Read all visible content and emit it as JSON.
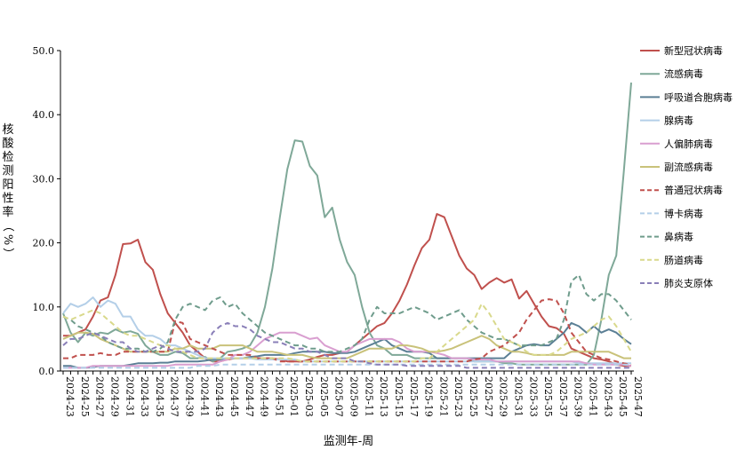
{
  "chart_data": {
    "type": "line",
    "title": "",
    "xlabel": "监测年-周",
    "ylabel": "核酸检测阳性率（%）",
    "ylim": [
      0,
      50
    ],
    "yticks": [
      "0.0",
      "10.0",
      "20.0",
      "30.0",
      "40.0",
      "50.0"
    ],
    "grid": false,
    "legend_position": "right",
    "x": [
      "2024-23",
      "2024-24",
      "2024-25",
      "2024-26",
      "2024-27",
      "2024-28",
      "2024-29",
      "2024-30",
      "2024-31",
      "2024-32",
      "2024-33",
      "2024-34",
      "2024-35",
      "2024-36",
      "2024-37",
      "2024-38",
      "2024-39",
      "2024-40",
      "2024-41",
      "2024-42",
      "2024-43",
      "2024-44",
      "2024-45",
      "2024-46",
      "2024-47",
      "2024-48",
      "2024-49",
      "2024-50",
      "2024-51",
      "2024-52",
      "2025-01",
      "2025-02",
      "2025-03",
      "2025-04",
      "2025-05",
      "2025-06",
      "2025-07",
      "2025-08",
      "2025-09",
      "2025-10",
      "2025-11",
      "2025-12",
      "2025-13",
      "2025-14",
      "2025-15",
      "2025-16",
      "2025-17",
      "2025-18",
      "2025-19",
      "2025-20",
      "2025-21",
      "2025-22",
      "2025-23",
      "2025-24",
      "2025-25",
      "2025-26",
      "2025-27",
      "2025-28",
      "2025-29",
      "2025-30",
      "2025-31",
      "2025-32",
      "2025-33",
      "2025-34",
      "2025-35",
      "2025-36",
      "2025-37",
      "2025-38",
      "2025-39",
      "2025-40",
      "2025-41",
      "2025-42",
      "2025-43",
      "2025-44",
      "2025-45",
      "2025-46",
      "2025-47"
    ],
    "x_tick_labels": [
      "2024-23",
      "2024-25",
      "2024-27",
      "2024-29",
      "2024-31",
      "2024-33",
      "2024-35",
      "2024-37",
      "2024-39",
      "2024-41",
      "2024-43",
      "2024-45",
      "2024-47",
      "2024-49",
      "2024-51",
      "2025-01",
      "2025-03",
      "2025-05",
      "2025-07",
      "2025-09",
      "2025-11",
      "2025-13",
      "2025-15",
      "2025-17",
      "2025-19",
      "2025-21",
      "2025-23",
      "2025-25",
      "2025-27",
      "2025-29",
      "2025-31",
      "2025-33",
      "2025-35",
      "2025-37",
      "2025-39",
      "2025-41",
      "2025-43",
      "2025-45",
      "2025-47"
    ],
    "series": [
      {
        "name": "新型冠状病毒",
        "color": "#c0504d",
        "dash": "solid",
        "values": [
          5.5,
          5.5,
          6,
          6.5,
          8.5,
          11,
          11.5,
          15,
          19.8,
          19.9,
          20.5,
          17,
          15.8,
          12,
          9,
          7.5,
          6,
          4,
          3,
          2,
          1.5,
          1.5,
          1.8,
          2,
          2,
          2,
          2,
          2,
          2,
          1.8,
          1.5,
          1.5,
          1.5,
          1.8,
          2.2,
          2.5,
          2.5,
          2.8,
          3,
          4,
          5,
          6,
          7,
          7.5,
          9,
          11,
          13.5,
          16.5,
          19.2,
          20.5,
          24.5,
          24,
          21,
          18,
          16,
          15,
          12.8,
          13.8,
          14.5,
          13.8,
          14.3,
          11.3,
          12.5,
          10.5,
          8.5,
          7,
          6.7,
          5.8,
          3.5,
          3,
          2.5,
          2,
          1.8,
          1.5,
          1,
          0.8,
          0.8
        ]
      },
      {
        "name": "流感病毒",
        "color": "#7fa898",
        "dash": "solid",
        "values": [
          9,
          6,
          4.5,
          6,
          5.5,
          6,
          5.8,
          6.5,
          6,
          6.2,
          5.8,
          4,
          3,
          2.5,
          2.5,
          3,
          2.8,
          2,
          2,
          2.2,
          1.5,
          2,
          3,
          3.2,
          3.5,
          4,
          6,
          10,
          16,
          24,
          31.5,
          36,
          35.8,
          32,
          30.5,
          24,
          25.5,
          20.5,
          17,
          15,
          10,
          6,
          4,
          3.5,
          2.5,
          2.5,
          2.5,
          2,
          2,
          2,
          2,
          2,
          2,
          2,
          2,
          1.5,
          1.5,
          1.5,
          1.5,
          1.2,
          1.2,
          1,
          1,
          1,
          1,
          1,
          1,
          1,
          1,
          1,
          1,
          2.5,
          8,
          15,
          18,
          31,
          45
        ]
      },
      {
        "name": "呼吸道合胞病毒",
        "color": "#5b7f95",
        "dash": "solid",
        "values": [
          0.8,
          0.8,
          0.5,
          0.5,
          0.6,
          0.8,
          0.8,
          0.8,
          0.8,
          1,
          1.2,
          1.2,
          1.2,
          1.3,
          1.3,
          1.5,
          1.5,
          1.5,
          1.5,
          1.6,
          1.8,
          1.8,
          2,
          2,
          2,
          2.2,
          2.3,
          2.5,
          2.5,
          2.5,
          2.5,
          2.8,
          3,
          3,
          3,
          3,
          2.8,
          2.8,
          2.8,
          3,
          3.5,
          4,
          4.5,
          5,
          4,
          3.5,
          3,
          3,
          3,
          2.8,
          2,
          2,
          2,
          2,
          2,
          2,
          2,
          2,
          2,
          2,
          3,
          3.5,
          4,
          4.2,
          4,
          4,
          5,
          6,
          7.5,
          7,
          6,
          7,
          6,
          6.5,
          6,
          5,
          4.2
        ]
      },
      {
        "name": "腺病毒",
        "color": "#b4cfe8",
        "dash": "solid",
        "values": [
          9,
          10.5,
          10,
          10.5,
          11.5,
          10,
          11,
          10.5,
          8.5,
          8.5,
          6.5,
          5.5,
          5.5,
          5,
          4,
          4,
          3.5,
          3,
          2.5,
          2,
          2,
          2,
          2,
          2,
          2,
          2,
          1.8,
          1.8,
          1.8,
          1.8,
          1.8,
          1.8,
          1.5,
          1.5,
          1.5,
          1.5,
          1.5,
          1.5,
          1.5,
          1.5,
          1.5,
          1.5,
          1.5,
          1.5,
          1.5,
          1.5,
          1.5,
          1.5,
          1.5,
          1.5,
          1.5,
          1.5,
          1.5,
          1.5,
          1.5,
          1.5,
          1.5,
          1.5,
          1.5,
          1.5,
          1.5,
          1.5,
          1.5,
          1.5,
          1.5,
          1.5,
          1.5,
          1.5,
          1.5,
          1.2,
          1.2,
          1.2,
          1.2,
          1.2,
          1.2,
          1.2,
          1.2
        ]
      },
      {
        "name": "人偏肺病毒",
        "color": "#d99fd0",
        "dash": "solid",
        "values": [
          0.5,
          0.5,
          0.5,
          0.5,
          0.8,
          0.8,
          0.8,
          0.8,
          0.8,
          0.8,
          0.8,
          0.8,
          0.8,
          0.8,
          0.8,
          1,
          1,
          1,
          1,
          1,
          1,
          1.5,
          1.8,
          2.5,
          2.5,
          3,
          4,
          5,
          5.5,
          6,
          6,
          6,
          5.5,
          5,
          5.2,
          4,
          3.5,
          3,
          3,
          4,
          4.5,
          5,
          5,
          5,
          5,
          4.5,
          3.5,
          3,
          3,
          3,
          2.8,
          2.5,
          2,
          2,
          2,
          1.8,
          1.8,
          1.8,
          1.5,
          1.5,
          1.5,
          1.5,
          1.5,
          1.5,
          1.5,
          1.5,
          1.5,
          1.5,
          1.5,
          1.5,
          1.2,
          1,
          1,
          1,
          1,
          1,
          0.8
        ]
      },
      {
        "name": "副流感病毒",
        "color": "#c9c27a",
        "dash": "solid",
        "values": [
          5,
          5.5,
          6,
          6,
          5.8,
          5,
          4.5,
          4,
          3.5,
          3,
          3,
          3,
          3,
          3,
          3,
          3.5,
          3.5,
          4,
          3.5,
          3.5,
          3.5,
          4,
          4,
          4,
          4,
          3.5,
          3,
          3,
          3,
          2.8,
          2.5,
          2.5,
          2.5,
          2.2,
          2,
          2,
          2,
          2,
          2,
          2.5,
          3,
          3.5,
          3.5,
          3.5,
          3.5,
          4,
          4,
          3.8,
          3.5,
          3,
          3,
          3.2,
          3.5,
          4,
          4.5,
          5,
          5.5,
          5,
          4,
          3.5,
          3,
          3,
          2.8,
          2.5,
          2.5,
          2.5,
          2.5,
          2.5,
          3,
          3,
          3,
          3,
          3,
          3,
          2.5,
          2,
          2
        ]
      },
      {
        "name": "普通冠状病毒",
        "color": "#c0504d",
        "dash": "dashed",
        "values": [
          2,
          2,
          2.5,
          2.5,
          2.5,
          2.8,
          2.5,
          2.5,
          3,
          3,
          3,
          3,
          3,
          3,
          3,
          7.8,
          7.5,
          5,
          4.5,
          4,
          3.5,
          3,
          2.5,
          2.5,
          2.5,
          2.5,
          2,
          2,
          2,
          1.5,
          1.5,
          1.5,
          1.5,
          1.5,
          1.5,
          1.5,
          1.5,
          1.5,
          1.5,
          1.5,
          1.5,
          1.5,
          1.5,
          1.5,
          1.5,
          1.5,
          1.5,
          1.5,
          1.5,
          1.5,
          1.5,
          1.5,
          1.5,
          1.5,
          1.5,
          1.8,
          2,
          3,
          3.5,
          4,
          5,
          6,
          8,
          9.5,
          11,
          11.2,
          11,
          9,
          6,
          4.5,
          3,
          2.5,
          2,
          1.8,
          1.5,
          1.2,
          1
        ]
      },
      {
        "name": "博卡病毒",
        "color": "#b4cfe8",
        "dash": "dashed",
        "values": [
          0.5,
          0.5,
          0.5,
          0.5,
          0.5,
          0.5,
          0.5,
          0.5,
          0.5,
          0.5,
          0.5,
          0.5,
          0.5,
          0.5,
          0.5,
          0.5,
          0.5,
          0.5,
          0.8,
          0.8,
          0.8,
          1,
          1,
          1,
          1,
          1,
          1,
          1,
          1,
          1,
          1,
          1,
          1,
          1,
          1,
          1,
          1,
          1,
          1,
          1,
          1,
          1,
          1,
          1,
          1,
          1,
          1,
          1,
          1,
          1,
          1,
          1,
          1,
          1,
          1,
          1,
          1,
          1,
          1,
          1,
          1,
          1,
          1,
          1,
          1,
          1,
          1,
          1,
          1,
          1,
          1,
          1,
          1,
          1,
          1,
          1,
          1
        ]
      },
      {
        "name": "鼻病毒",
        "color": "#6f9c8c",
        "dash": "dashed",
        "values": [
          8.5,
          8,
          7,
          6.5,
          6,
          5.5,
          4.5,
          4,
          3.5,
          3.5,
          3.5,
          3,
          3,
          3.5,
          4.5,
          8,
          10,
          10.5,
          10,
          9.5,
          11,
          11.5,
          10,
          10.5,
          9,
          8,
          7,
          6,
          5.5,
          5,
          4.5,
          4,
          4,
          3.5,
          3.5,
          3,
          3,
          3,
          3.5,
          4,
          5,
          8,
          10,
          9,
          9,
          9,
          9.5,
          10,
          9.5,
          9,
          8,
          8.5,
          9,
          9.5,
          8,
          7,
          6,
          5.5,
          5,
          5,
          4.5,
          4,
          4,
          4,
          4,
          4.5,
          5,
          8,
          14,
          15,
          12,
          11,
          12,
          12,
          11,
          9.5,
          8
        ]
      },
      {
        "name": "肠道病毒",
        "color": "#d9d98c",
        "dash": "dashed",
        "values": [
          8.5,
          8,
          8.5,
          9,
          9.5,
          9,
          8,
          7,
          6,
          5.5,
          5.5,
          5,
          4.5,
          4,
          4,
          3.5,
          3,
          2.5,
          2,
          2,
          2,
          2,
          2,
          2,
          2,
          2,
          2,
          2,
          2,
          2,
          2,
          1.8,
          1.5,
          1.5,
          1.5,
          1.5,
          1.5,
          1.5,
          1.5,
          1.5,
          1.5,
          1.5,
          1.5,
          1.5,
          1.5,
          1.5,
          1.5,
          1.5,
          2,
          2,
          3,
          4,
          5,
          6,
          7,
          8,
          10.5,
          9,
          7,
          5,
          4.5,
          4,
          3,
          2.5,
          2.5,
          2.5,
          3,
          4,
          5,
          5.5,
          6,
          7,
          8,
          8.5,
          7,
          5,
          3
        ]
      },
      {
        "name": "肺炎支原体",
        "color": "#8a7fb8",
        "dash": "dashed",
        "values": [
          4,
          5,
          5,
          5.5,
          6,
          5.5,
          5,
          4.5,
          4.5,
          3.5,
          3,
          3,
          3.5,
          4,
          3.5,
          3,
          3,
          3,
          3,
          3.5,
          6,
          7,
          7.5,
          7,
          7,
          6.5,
          5.5,
          5,
          4.5,
          4.5,
          4,
          3.5,
          3.5,
          3,
          3,
          2.5,
          2,
          2,
          2,
          1.5,
          1.5,
          1.2,
          1,
          1,
          1,
          1,
          0.8,
          0.8,
          0.8,
          0.8,
          0.8,
          0.8,
          0.8,
          0.8,
          0.5,
          0.5,
          0.5,
          0.5,
          0.5,
          0.5,
          0.5,
          0.5,
          0.5,
          0.5,
          0.5,
          0.5,
          0.5,
          0.5,
          0.5,
          0.5,
          0.5,
          0.5,
          0.5,
          0.5,
          0.5,
          0.5,
          0.5
        ]
      }
    ]
  }
}
